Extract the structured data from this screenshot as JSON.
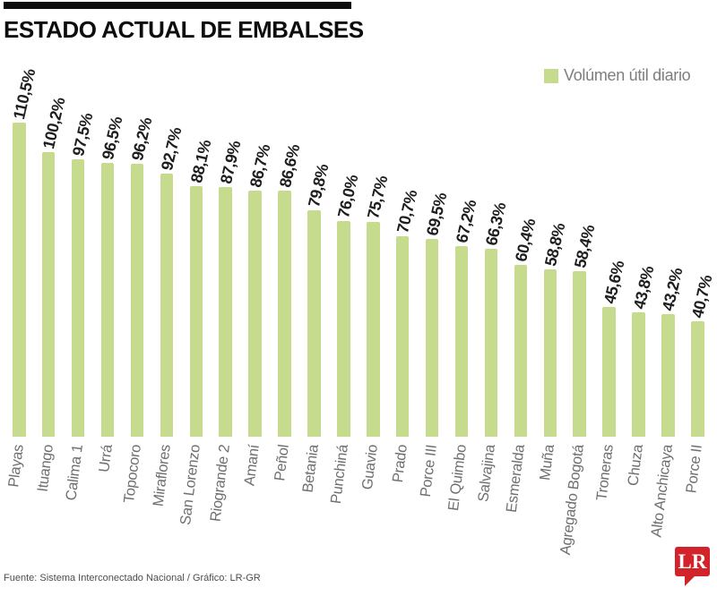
{
  "header": {
    "title": "ESTADO ACTUAL DE EMBALSES"
  },
  "legend": {
    "label": "Volúmen útil diario",
    "swatch_color": "#c6db8d"
  },
  "footer": {
    "source": "Fuente: Sistema Interconectado Nacional / Gráfico: LR-GR"
  },
  "logo": {
    "text": "LR",
    "color": "#d2232a"
  },
  "chart_data": {
    "type": "bar",
    "title": "ESTADO ACTUAL DE EMBALSES",
    "series_label": "Volúmen útil diario",
    "unit": "%",
    "ylim": [
      0,
      110.5
    ],
    "grid": false,
    "legend_position": "top-right",
    "bar_color": "#c6db8d",
    "categories": [
      "Playas",
      "Ituango",
      "Calima 1",
      "Urrá",
      "Topocoro",
      "Miraflores",
      "San Lorenzo",
      "Riogrande 2",
      "Amaní",
      "Peñol",
      "Betania",
      "Punchiná",
      "Guavio",
      "Prado",
      "Porce III",
      "El Quimbo",
      "Salvajina",
      "Esmeralda",
      "Muña",
      "Agregado Bogotá",
      "Troneras",
      "Chuza",
      "Alto Anchicaya",
      "Porce II"
    ],
    "values": [
      110.5,
      100.2,
      97.5,
      96.5,
      96.2,
      92.7,
      88.1,
      87.9,
      86.7,
      86.6,
      79.8,
      76.0,
      75.7,
      70.7,
      69.5,
      67.2,
      66.3,
      60.4,
      58.8,
      58.4,
      45.6,
      43.8,
      43.2,
      40.7
    ],
    "value_labels": [
      "110,5%",
      "100,2%",
      "97,5%",
      "96,5%",
      "96,2%",
      "92,7%",
      "88,1%",
      "87,9%",
      "86,7%",
      "86,6%",
      "79,8%",
      "76,0%",
      "75,7%",
      "70,7%",
      "69,5%",
      "67,2%",
      "66,3%",
      "60,4%",
      "58,8%",
      "58,4%",
      "45,6%",
      "43,8%",
      "43,2%",
      "40,7%"
    ]
  }
}
